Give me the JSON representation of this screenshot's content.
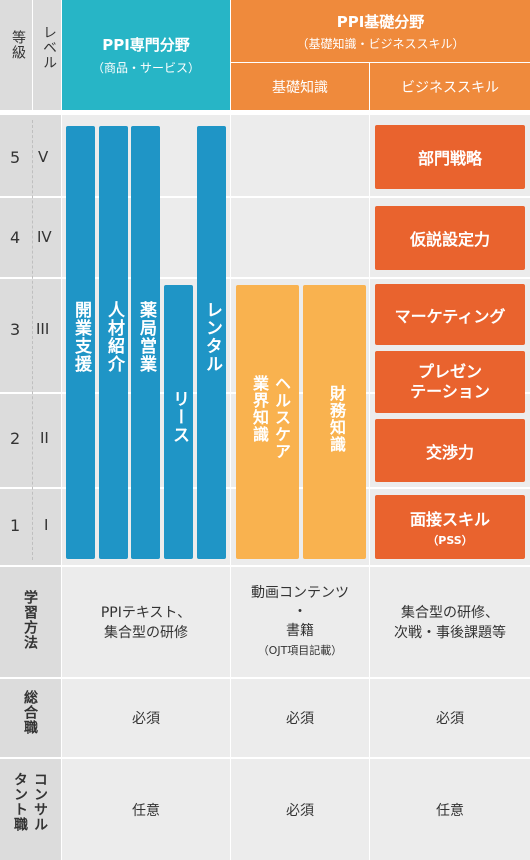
{
  "header": {
    "grade": "等級",
    "level": "レベル",
    "ppi_field_title": "PPI専門分野",
    "ppi_field_sub": "（商品・サービス）",
    "basic_field_title": "PPI基礎分野",
    "basic_field_sub": "（基礎知識・ビジネススキル）",
    "basic_knowledge": "基礎知識",
    "business_skill": "ビジネススキル"
  },
  "levels": [
    {
      "grade": "5",
      "roman": "V"
    },
    {
      "grade": "4",
      "roman": "IV"
    },
    {
      "grade": "3",
      "roman": "III"
    },
    {
      "grade": "2",
      "roman": "II"
    },
    {
      "grade": "1",
      "roman": "I"
    }
  ],
  "ppi_bars": [
    "開業支援",
    "人材紹介",
    "薬局営業",
    "リース",
    "レンタル"
  ],
  "basic_bars": [
    "ヘルスケア業界知識",
    "財務知識"
  ],
  "skills": [
    "部門戦略",
    "仮説設定力",
    "マーケティング",
    "プレゼンテーション",
    "交渉力",
    "面接スキル",
    "（PSS）"
  ],
  "skill_lines": {
    "presentation_1": "プレゼン",
    "presentation_2": "テーション"
  },
  "rows": {
    "study": {
      "label": "学習方法",
      "ppi": "PPIテキスト、集合型の研修",
      "ppi_1": "PPIテキスト、",
      "ppi_2": "集合型の研修",
      "basic_1": "動画コンテンツ",
      "basic_2": "・",
      "basic_3": "書籍",
      "basic_4": "（OJT項目記載）",
      "skill_1": "集合型の研修、",
      "skill_2": "次戦・事後課題等"
    },
    "general": {
      "label": "総合職",
      "ppi": "必須",
      "basic": "必須",
      "skill": "必須"
    },
    "consultant": {
      "label": "コンサルタント職",
      "label_1": "コンサル",
      "label_2": "タント職",
      "ppi": "任意",
      "basic": "必須",
      "skill": "任意"
    }
  }
}
